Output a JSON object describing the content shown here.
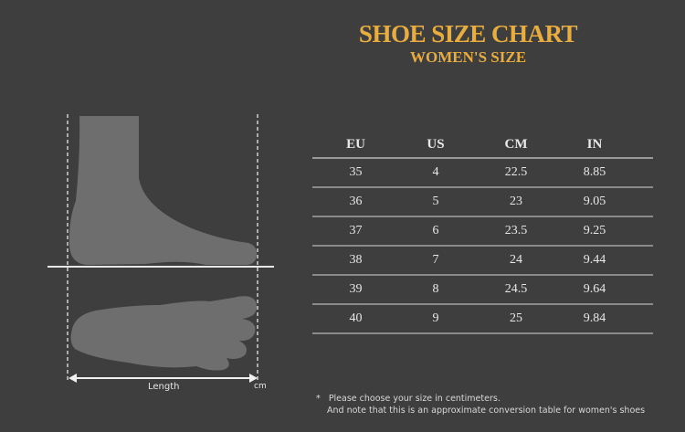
{
  "title": "SHOE SIZE CHART",
  "subtitle": "WOMEN'S SIZE",
  "table": {
    "headers": [
      "EU",
      "US",
      "CM",
      "IN"
    ],
    "rows": [
      [
        "35",
        "4",
        "22.5",
        "8.85"
      ],
      [
        "36",
        "5",
        "23",
        "9.05"
      ],
      [
        "37",
        "6",
        "23.5",
        "9.25"
      ],
      [
        "38",
        "7",
        "24",
        "9.44"
      ],
      [
        "39",
        "8",
        "24.5",
        "9.64"
      ],
      [
        "40",
        "9",
        "25",
        "9.84"
      ]
    ]
  },
  "diagram": {
    "length_label": "Length",
    "unit_label": "cm"
  },
  "note": {
    "bullet": "*",
    "line1": "Please choose your size in centimeters.",
    "line2": "And note that this is an approximate conversion table for women's shoes"
  },
  "colors": {
    "background": "#3e3e3e",
    "accent": "#e9ad3e",
    "foot": "#6e6e6e"
  }
}
